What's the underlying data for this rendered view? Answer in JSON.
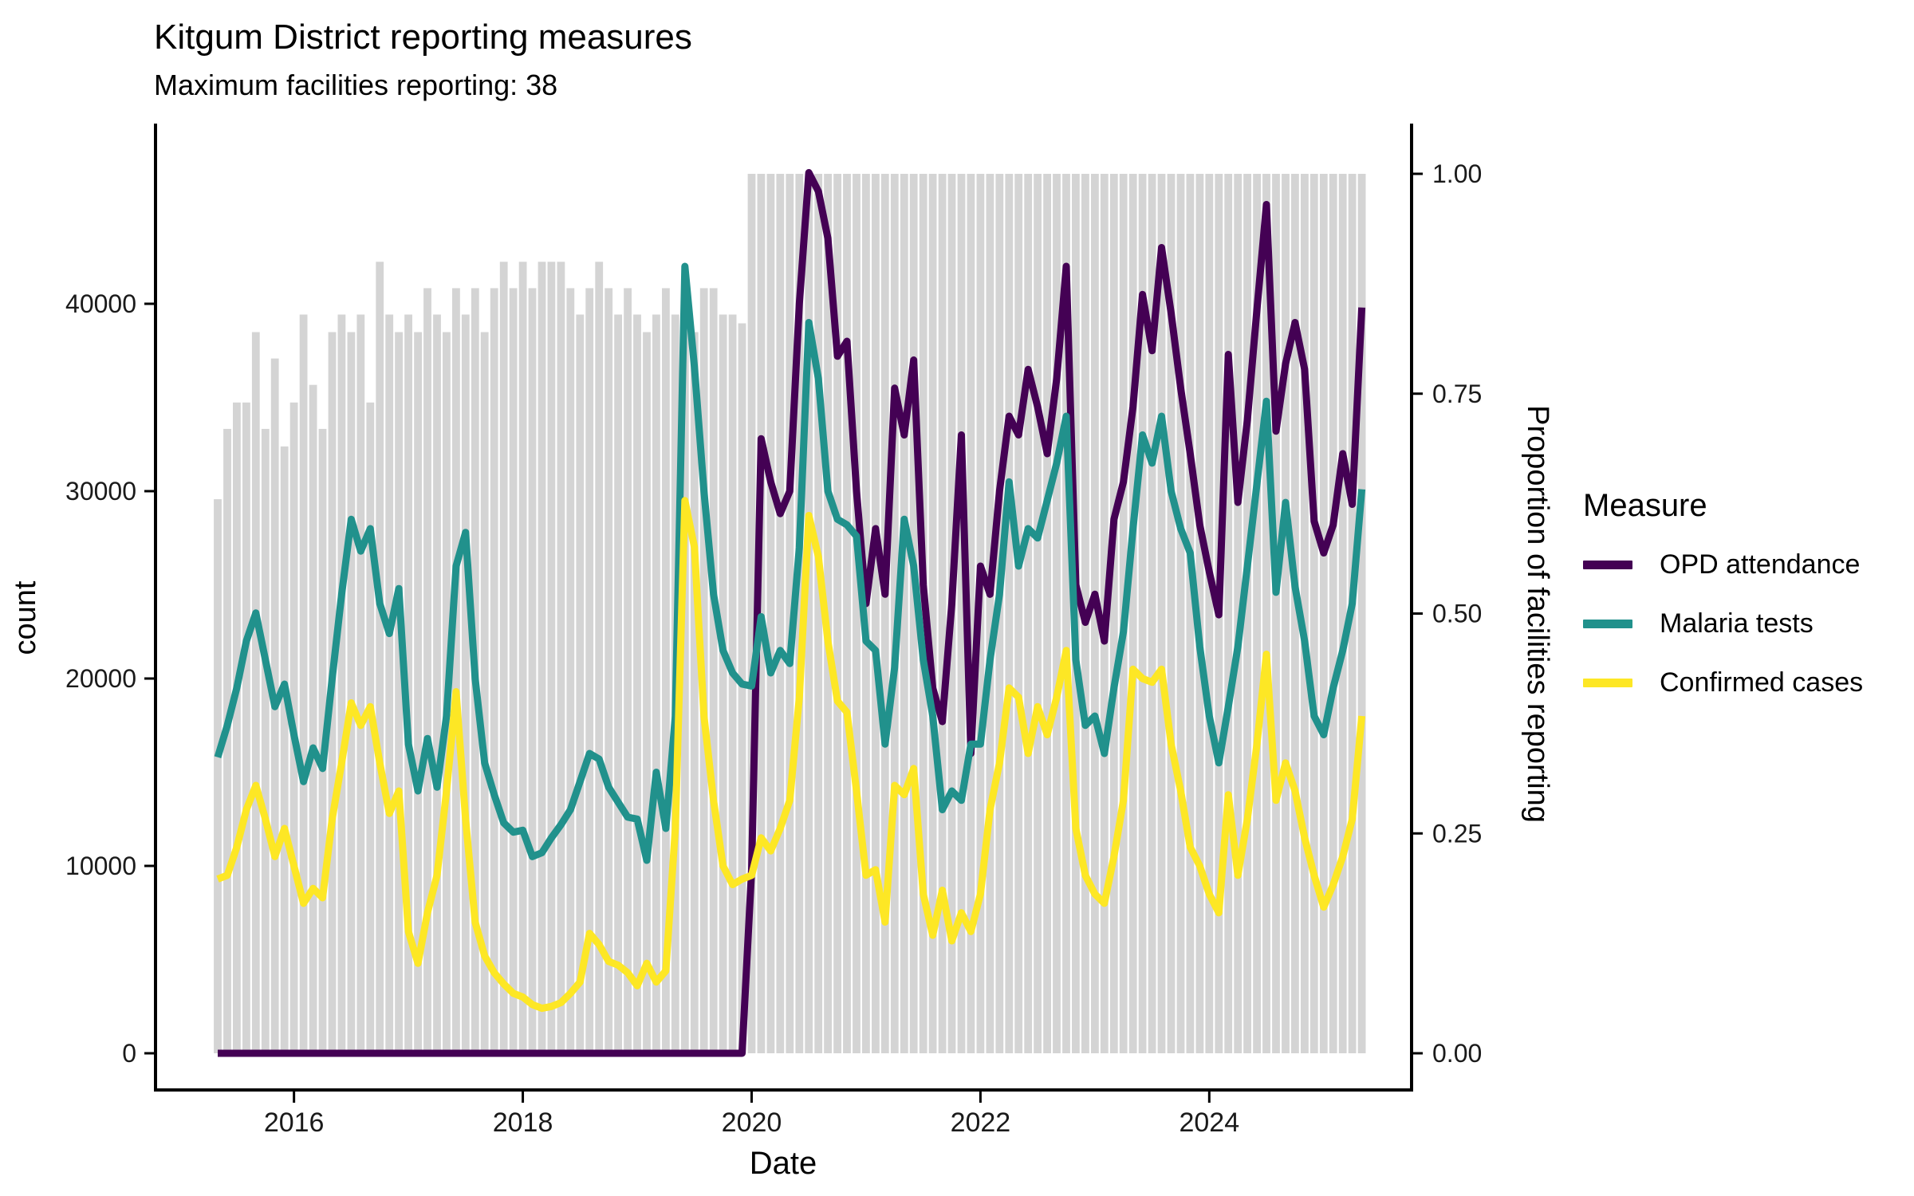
{
  "title": "Kitgum District reporting measures",
  "subtitle": "Maximum facilities reporting: 38",
  "legend": {
    "title": "Measure",
    "items": [
      {
        "label": "OPD attendance",
        "color": "#440154"
      },
      {
        "label": "Malaria tests",
        "color": "#21918c"
      },
      {
        "label": "Confirmed cases",
        "color": "#fde725"
      }
    ]
  },
  "axes": {
    "x": {
      "label": "Date",
      "ticks": [
        "2016",
        "2018",
        "2020",
        "2022",
        "2024"
      ]
    },
    "y_left": {
      "label": "count",
      "ticks": [
        "0",
        "10000",
        "20000",
        "30000",
        "40000"
      ]
    },
    "y_right": {
      "label": "Proportion of facilities reporting",
      "ticks": [
        "0.00",
        "0.25",
        "0.50",
        "0.75",
        "1.00"
      ]
    }
  },
  "chart_data": {
    "type": "bar+line",
    "x_unit": "month",
    "months": [
      "2015-05",
      "2015-06",
      "2015-07",
      "2015-08",
      "2015-09",
      "2015-10",
      "2015-11",
      "2015-12",
      "2016-01",
      "2016-02",
      "2016-03",
      "2016-04",
      "2016-05",
      "2016-06",
      "2016-07",
      "2016-08",
      "2016-09",
      "2016-10",
      "2016-11",
      "2016-12",
      "2017-01",
      "2017-02",
      "2017-03",
      "2017-04",
      "2017-05",
      "2017-06",
      "2017-07",
      "2017-08",
      "2017-09",
      "2017-10",
      "2017-11",
      "2017-12",
      "2018-01",
      "2018-02",
      "2018-03",
      "2018-04",
      "2018-05",
      "2018-06",
      "2018-07",
      "2018-08",
      "2018-09",
      "2018-10",
      "2018-11",
      "2018-12",
      "2019-01",
      "2019-02",
      "2019-03",
      "2019-04",
      "2019-05",
      "2019-06",
      "2019-07",
      "2019-08",
      "2019-09",
      "2019-10",
      "2019-11",
      "2019-12",
      "2020-01",
      "2020-02",
      "2020-03",
      "2020-04",
      "2020-05",
      "2020-06",
      "2020-07",
      "2020-08",
      "2020-09",
      "2020-10",
      "2020-11",
      "2020-12",
      "2021-01",
      "2021-02",
      "2021-03",
      "2021-04",
      "2021-05",
      "2021-06",
      "2021-07",
      "2021-08",
      "2021-09",
      "2021-10",
      "2021-11",
      "2021-12",
      "2022-01",
      "2022-02",
      "2022-03",
      "2022-04",
      "2022-05",
      "2022-06",
      "2022-07",
      "2022-08",
      "2022-09",
      "2022-10",
      "2022-11",
      "2022-12",
      "2023-01",
      "2023-02",
      "2023-03",
      "2023-04",
      "2023-05",
      "2023-06",
      "2023-07",
      "2023-08",
      "2023-09",
      "2023-10",
      "2023-11",
      "2023-12",
      "2024-01",
      "2024-02",
      "2024-03",
      "2024-04",
      "2024-05",
      "2024-06",
      "2024-07",
      "2024-08",
      "2024-09",
      "2024-10",
      "2024-11",
      "2024-12",
      "2025-01",
      "2025-02",
      "2025-03",
      "2025-04",
      "2025-05"
    ],
    "bars": {
      "name": "Proportion of facilities reporting",
      "axis": "right",
      "color": "#d4d4d4",
      "values": [
        0.63,
        0.71,
        0.74,
        0.74,
        0.82,
        0.71,
        0.79,
        0.69,
        0.74,
        0.84,
        0.76,
        0.71,
        0.82,
        0.84,
        0.82,
        0.84,
        0.74,
        0.9,
        0.84,
        0.82,
        0.84,
        0.82,
        0.87,
        0.84,
        0.82,
        0.87,
        0.84,
        0.87,
        0.82,
        0.87,
        0.9,
        0.87,
        0.9,
        0.87,
        0.9,
        0.9,
        0.9,
        0.87,
        0.84,
        0.87,
        0.9,
        0.87,
        0.84,
        0.87,
        0.84,
        0.82,
        0.84,
        0.87,
        0.84,
        0.84,
        0.82,
        0.87,
        0.87,
        0.84,
        0.84,
        0.83,
        1,
        1,
        1,
        1,
        1,
        1,
        1,
        1,
        1,
        1,
        1,
        1,
        1,
        1,
        1,
        1,
        1,
        1,
        1,
        1,
        1,
        1,
        1,
        1,
        1,
        1,
        1,
        1,
        1,
        1,
        1,
        1,
        1,
        1,
        1,
        1,
        1,
        1,
        1,
        1,
        1,
        1,
        1,
        1,
        1,
        1,
        1,
        1,
        1,
        1,
        1,
        1,
        1,
        1,
        1,
        1,
        1,
        1,
        1,
        1,
        1,
        1,
        1,
        1,
        1
      ]
    },
    "series": [
      {
        "name": "OPD attendance",
        "axis": "left",
        "color": "#440154",
        "values": [
          0,
          0,
          0,
          0,
          0,
          0,
          0,
          0,
          0,
          0,
          0,
          0,
          0,
          0,
          0,
          0,
          0,
          0,
          0,
          0,
          0,
          0,
          0,
          0,
          0,
          0,
          0,
          0,
          0,
          0,
          0,
          0,
          0,
          0,
          0,
          0,
          0,
          0,
          0,
          0,
          0,
          0,
          0,
          0,
          0,
          0,
          0,
          0,
          0,
          0,
          0,
          0,
          0,
          0,
          0,
          0,
          9800,
          32800,
          30500,
          28800,
          30000,
          40000,
          47000,
          46000,
          43500,
          37200,
          38000,
          30000,
          24000,
          28000,
          24500,
          35500,
          33000,
          37000,
          25000,
          19500,
          17700,
          24000,
          33000,
          16000,
          26000,
          24500,
          30000,
          34000,
          33000,
          36500,
          34500,
          32000,
          36000,
          42000,
          25000,
          23000,
          24500,
          22000,
          28500,
          30500,
          34500,
          40500,
          37500,
          43000,
          39500,
          35500,
          32000,
          28200,
          25700,
          23400,
          37300,
          29400,
          33800,
          39700,
          45300,
          33200,
          36800,
          39000,
          36500,
          28400,
          26700,
          28200,
          32000,
          29300,
          39800
        ]
      },
      {
        "name": "Malaria tests",
        "axis": "left",
        "color": "#21918c",
        "values": [
          15800,
          17500,
          19500,
          22000,
          23500,
          21000,
          18500,
          19700,
          17000,
          14500,
          16300,
          15200,
          20000,
          24500,
          28500,
          26800,
          28000,
          24000,
          22400,
          24800,
          16500,
          14000,
          16800,
          14200,
          18000,
          26000,
          27800,
          20000,
          15500,
          13800,
          12300,
          11800,
          11900,
          10500,
          10700,
          11500,
          12200,
          13000,
          14500,
          16000,
          15700,
          14200,
          13400,
          12600,
          12500,
          10300,
          15000,
          12000,
          18000,
          42000,
          36600,
          30000,
          24500,
          21500,
          20300,
          19700,
          19600,
          23300,
          20300,
          21500,
          20800,
          27000,
          39000,
          36000,
          30000,
          28500,
          28200,
          27600,
          22000,
          21500,
          16500,
          20600,
          28500,
          26000,
          21000,
          18000,
          13000,
          14000,
          13500,
          16500,
          16500,
          21000,
          24500,
          30500,
          26000,
          28000,
          27500,
          29500,
          31500,
          34000,
          21000,
          17500,
          18000,
          16000,
          19500,
          22500,
          28000,
          33000,
          31500,
          34000,
          30000,
          28000,
          26700,
          21700,
          18000,
          15500,
          18500,
          21700,
          26000,
          30400,
          34800,
          24600,
          29400,
          24900,
          22000,
          18000,
          17000,
          19500,
          21500,
          24000,
          30100
        ]
      },
      {
        "name": "Confirmed cases",
        "axis": "left",
        "color": "#fde725",
        "values": [
          9300,
          9500,
          11000,
          13000,
          14300,
          12500,
          10500,
          12000,
          10000,
          8000,
          8800,
          8300,
          12500,
          15500,
          18700,
          17500,
          18500,
          15500,
          12800,
          14000,
          6500,
          4800,
          7500,
          9500,
          14000,
          19300,
          12500,
          7000,
          5200,
          4300,
          3700,
          3200,
          3000,
          2600,
          2400,
          2500,
          2700,
          3200,
          3800,
          6400,
          5800,
          4900,
          4700,
          4300,
          3600,
          4800,
          3800,
          4400,
          12000,
          29500,
          27000,
          18000,
          13500,
          10000,
          9000,
          9300,
          9500,
          11500,
          10800,
          12000,
          13500,
          19000,
          28700,
          26500,
          22000,
          18800,
          18200,
          14000,
          9500,
          9800,
          7000,
          14300,
          13800,
          15200,
          8500,
          6300,
          8700,
          6000,
          7500,
          6500,
          8500,
          13000,
          15500,
          19500,
          19000,
          16000,
          18500,
          17000,
          19000,
          21500,
          12000,
          9500,
          8500,
          8000,
          10500,
          13500,
          20500,
          20000,
          19800,
          20500,
          16500,
          14000,
          11000,
          10000,
          8500,
          7500,
          13800,
          9500,
          12500,
          16500,
          21300,
          13500,
          15500,
          14000,
          11500,
          9500,
          7800,
          9000,
          10500,
          12500,
          18000
        ]
      }
    ],
    "layout_hints": {
      "left_axis_range_count": [
        0,
        47600
      ],
      "right_axis_range_proportion": [
        0,
        1
      ],
      "bars_full_height_from": "2020-01",
      "grid": "off",
      "legend_position": "right"
    }
  }
}
